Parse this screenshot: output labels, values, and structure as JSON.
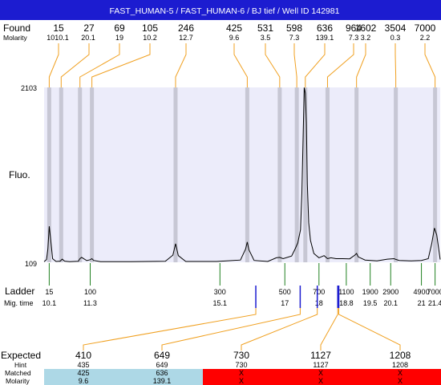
{
  "chart_data": {
    "type": "line",
    "title": "FAST_HUMAN-5 / FAST_HUMAN-6 / BJ tief / Well ID 142981",
    "colors": {
      "title_bar": "#1c1cd0",
      "plot_bg": "#ececfa",
      "peak_band": "#c7c7d4",
      "found_leader": "#f0a020",
      "ladder_tick": "#208020",
      "expected_tick": "#1c1cd0",
      "matched_ok": "#add8e6",
      "matched_missing": "#ff0000",
      "trace": "#000000"
    },
    "row_labels": {
      "found": "Found",
      "molarity": "Molarity",
      "fluo": "Fluo.",
      "ladder": "Ladder",
      "mig_time": "Mig. time",
      "expected": "Expected",
      "hint": "Hint",
      "matched": "Matched",
      "molarity_bottom": "Molarity"
    },
    "y_axis": {
      "max_label": "2103",
      "min_label": "109",
      "range": [
        109,
        2103
      ]
    },
    "x_range": [
      9.95,
      21.55
    ],
    "found": {
      "sizes": [
        "15",
        "27",
        "69",
        "105",
        "246",
        "425",
        "531",
        "598",
        "636",
        "964",
        "1602",
        "3504",
        "7000"
      ],
      "molarity": [
        "1010.1",
        "20.1",
        "19",
        "10.2",
        "12.7",
        "9.6",
        "3.5",
        "7.3",
        "139.1",
        "7.3",
        "3.2",
        "0.3",
        "2.2"
      ],
      "times": [
        10.1,
        10.45,
        11.0,
        11.35,
        13.8,
        15.9,
        16.85,
        17.35,
        17.6,
        18.25,
        19.1,
        20.25,
        21.4
      ]
    },
    "ladder": {
      "sizes": [
        "15",
        "100",
        "300",
        "500",
        "700",
        "1100",
        "1900",
        "2900",
        "4900",
        "7000"
      ],
      "times": [
        "10.1",
        "11.3",
        "15.1",
        "17",
        "18",
        "18.8",
        "19.5",
        "20.1",
        "21",
        "21.4"
      ]
    },
    "expected": {
      "values": [
        "410",
        "649",
        "730",
        "1127",
        "1208"
      ],
      "hint": [
        "435",
        "649",
        "730",
        "1127",
        "1208"
      ],
      "matched": [
        "425",
        "636",
        "X",
        "X",
        "X"
      ],
      "molarity": [
        "9.6",
        "139.1",
        "X",
        "X",
        "X"
      ],
      "matched_ok": [
        true,
        true,
        false,
        false,
        false
      ],
      "times": [
        16.15,
        17.45,
        17.95,
        18.55,
        18.58
      ]
    },
    "trace": {
      "x": [
        9.95,
        10.02,
        10.06,
        10.1,
        10.14,
        10.2,
        10.3,
        10.42,
        10.48,
        10.55,
        10.7,
        10.95,
        11.0,
        11.05,
        11.2,
        11.3,
        11.35,
        11.4,
        11.6,
        12.5,
        13.5,
        13.72,
        13.8,
        13.88,
        14.1,
        15.0,
        15.7,
        15.85,
        15.9,
        15.95,
        16.1,
        16.5,
        16.75,
        16.85,
        16.95,
        17.2,
        17.3,
        17.38,
        17.46,
        17.5,
        17.54,
        17.57,
        17.6,
        17.63,
        17.66,
        17.7,
        17.75,
        17.85,
        18.0,
        18.15,
        18.25,
        18.35,
        18.5,
        18.7,
        18.9,
        19.05,
        19.1,
        19.15,
        19.35,
        19.7,
        20.0,
        20.2,
        20.25,
        20.35,
        20.7,
        21.0,
        21.2,
        21.3,
        21.38,
        21.45,
        21.55
      ],
      "y": [
        115,
        140,
        260,
        520,
        380,
        150,
        118,
        122,
        145,
        122,
        116,
        120,
        150,
        165,
        128,
        138,
        150,
        130,
        116,
        116,
        120,
        190,
        320,
        185,
        118,
        118,
        135,
        260,
        340,
        250,
        130,
        118,
        160,
        165,
        150,
        180,
        260,
        330,
        480,
        900,
        1600,
        2100,
        2040,
        1700,
        1000,
        560,
        360,
        210,
        160,
        185,
        150,
        160,
        150,
        150,
        148,
        190,
        210,
        170,
        135,
        125,
        145,
        150,
        142,
        130,
        125,
        130,
        150,
        320,
        500,
        420,
        140
      ]
    }
  }
}
